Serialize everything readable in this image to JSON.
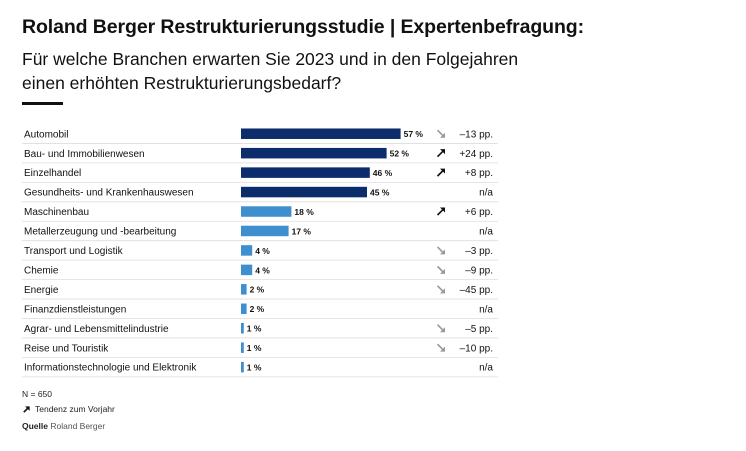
{
  "header": {
    "title": "Roland Berger Restrukturierungsstudie | Expertenbefragung:",
    "subtitle_line1": "Für welche Branchen erwarten Sie 2023 und in den Folgejahren",
    "subtitle_line2": "einen erhöhten Restrukturierungsbedarf?"
  },
  "footer": {
    "sample": "N = 650",
    "trend_legend": "Tendenz zum Vorjahr",
    "source_label": "Quelle",
    "source_name": "Roland Berger"
  },
  "colors": {
    "dark_bar": "#0d2c6c",
    "light_bar": "#3f8fcf",
    "arrow_up": "#111111",
    "arrow_down": "#999999",
    "grid": "#dddddd"
  },
  "chart_data": {
    "type": "bar",
    "orientation": "horizontal",
    "xlim": [
      0,
      100
    ],
    "value_suffix": "%",
    "categories": [
      "Automobil",
      "Bau- und Immobilienwesen",
      "Einzelhandel",
      "Gesundheits- und Krankenhauswesen",
      "Maschinenbau",
      "Metallerzeugung und -bearbeitung",
      "Transport und Logistik",
      "Chemie",
      "Energie",
      "Finanzdienstleistungen",
      "Agrar- und Lebensmittelindustrie",
      "Reise und Touristik",
      "Informationstechnologie und Elektronik"
    ],
    "values": [
      57,
      52,
      46,
      45,
      18,
      17,
      4,
      4,
      2,
      2,
      1,
      1,
      1
    ],
    "highlight": [
      true,
      true,
      true,
      true,
      false,
      false,
      false,
      false,
      false,
      false,
      false,
      false,
      false
    ],
    "trend": [
      "down",
      "up",
      "up",
      "none",
      "up",
      "none",
      "down",
      "down",
      "down",
      "none",
      "down",
      "down",
      "none"
    ],
    "change_labels": [
      "–13 pp.",
      "+24 pp.",
      "+8 pp.",
      "n/a",
      "+6 pp.",
      "n/a",
      "–3 pp.",
      "–9 pp.",
      "–45 pp.",
      "n/a",
      "–5 pp.",
      "–10 pp.",
      "n/a"
    ]
  }
}
